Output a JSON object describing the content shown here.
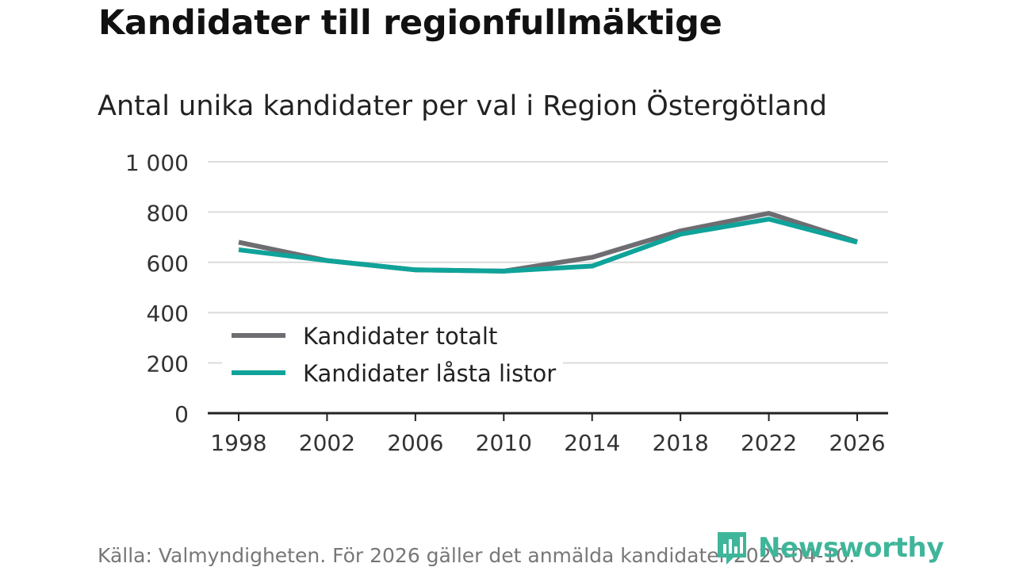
{
  "title": "Kandidater till regionfullmäktige",
  "subtitle": "Antal unika kandidater per val i Region Östergötland",
  "footer": "Källa: Valmyndigheten. För 2026 gäller det anmälda kandidater 2026-04-10.",
  "brand": {
    "name": "Newsworthy",
    "icon": "bar-chart-icon",
    "color": "#3fb59a"
  },
  "chart_data": {
    "type": "line",
    "title": "Kandidater till regionfullmäktige",
    "subtitle": "Antal unika kandidater per val i Region Östergötland",
    "xlabel": "",
    "ylabel": "",
    "x": [
      1998,
      2002,
      2006,
      2010,
      2014,
      2018,
      2022,
      2026
    ],
    "x_tick_labels": [
      "1998",
      "2002",
      "2006",
      "2010",
      "2014",
      "2018",
      "2022",
      "2026"
    ],
    "ylim": [
      0,
      1000
    ],
    "y_ticks": [
      0,
      200,
      400,
      600,
      800,
      1000
    ],
    "y_tick_labels": [
      "0",
      "200",
      "400",
      "600",
      "800",
      "1 000"
    ],
    "grid": true,
    "legend_position": "bottom-left",
    "series": [
      {
        "name": "Kandidater totalt",
        "color": "#6d6d72",
        "values": [
          680,
          607,
          570,
          565,
          620,
          725,
          795,
          682
        ]
      },
      {
        "name": "Kandidater låsta listor",
        "color": "#0fa39a",
        "values": [
          650,
          607,
          570,
          565,
          585,
          712,
          772,
          680
        ]
      }
    ]
  }
}
